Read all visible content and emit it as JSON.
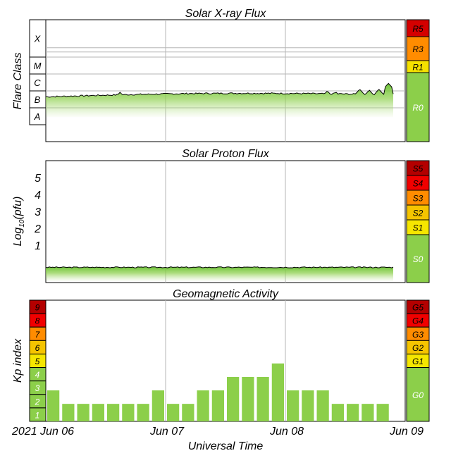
{
  "chart_data": [
    {
      "type": "area",
      "title": "Solar X-ray Flux",
      "ylabel": "Flare Class",
      "flare_classes": [
        "X",
        "M",
        "C",
        "B",
        "A"
      ],
      "scale": [
        {
          "label": "R5",
          "color": "#d50000"
        },
        {
          "label": "R3",
          "color": "#ff8c00"
        },
        {
          "label": "R1",
          "color": "#f5e100"
        },
        {
          "label": "R0",
          "color": "#8ccf4a"
        }
      ],
      "baseline_class_level": 1.65,
      "peaks": [
        {
          "x_day": 0.62,
          "level": 1.92
        },
        {
          "x_day": 1.2,
          "level": 1.85
        },
        {
          "x_day": 1.55,
          "level": 1.82
        },
        {
          "x_day": 2.35,
          "level": 2.0
        },
        {
          "x_day": 2.42,
          "level": 1.95
        },
        {
          "x_day": 2.62,
          "level": 2.1
        },
        {
          "x_day": 2.7,
          "level": 2.05
        },
        {
          "x_day": 2.78,
          "level": 2.1
        },
        {
          "x_day": 2.86,
          "level": 2.45
        },
        {
          "x_day": 2.94,
          "level": 2.25
        }
      ]
    },
    {
      "type": "area",
      "title": "Solar Proton Flux",
      "ylabel": "Log10(pfu)",
      "ylabel_base": "Log",
      "ylabel_sub": "10",
      "ylabel_unit": "(pfu)",
      "yticks": [
        "5",
        "4",
        "3",
        "2",
        "1"
      ],
      "ylim": [
        -1.2,
        6
      ],
      "baseline": -0.3,
      "scale": [
        {
          "label": "S5",
          "color": "#b40000"
        },
        {
          "label": "S4",
          "color": "#f00000"
        },
        {
          "label": "S3",
          "color": "#ff8c00"
        },
        {
          "label": "S2",
          "color": "#f5c400"
        },
        {
          "label": "S1",
          "color": "#f5e600"
        },
        {
          "label": "S0",
          "color": "#8ccf4a"
        }
      ]
    },
    {
      "type": "bar",
      "title": "Geomagnetic Activity",
      "ylabel": "Kp index",
      "xlabel": "Universal Time",
      "ylim": [
        0,
        9
      ],
      "kp_levels": [
        {
          "label": "9",
          "color": "#b40000"
        },
        {
          "label": "8",
          "color": "#f00000"
        },
        {
          "label": "7",
          "color": "#ff8c00"
        },
        {
          "label": "6",
          "color": "#f5c400"
        },
        {
          "label": "5",
          "color": "#f5e600"
        },
        {
          "label": "4",
          "color": "#8ccf4a"
        },
        {
          "label": "3",
          "color": "#8ccf4a"
        },
        {
          "label": "2",
          "color": "#8ccf4a"
        },
        {
          "label": "1",
          "color": "#8ccf4a"
        }
      ],
      "scale": [
        {
          "label": "G5",
          "color": "#b40000"
        },
        {
          "label": "G4",
          "color": "#f00000"
        },
        {
          "label": "G3",
          "color": "#ff8c00"
        },
        {
          "label": "G2",
          "color": "#f5c400"
        },
        {
          "label": "G1",
          "color": "#f5e600"
        },
        {
          "label": "G0",
          "color": "#8ccf4a"
        }
      ],
      "values": [
        2.3,
        1.3,
        1.3,
        1.3,
        1.3,
        1.3,
        1.3,
        2.3,
        1.3,
        1.3,
        2.3,
        2.3,
        3.3,
        3.3,
        3.3,
        4.3,
        2.3,
        2.3,
        2.3,
        1.3,
        1.3,
        1.3,
        1.3
      ],
      "bar_color": "#8ccf4a",
      "x_ticks": [
        "2021 Jun 06",
        "Jun 07",
        "Jun 08",
        "Jun 09"
      ]
    }
  ]
}
